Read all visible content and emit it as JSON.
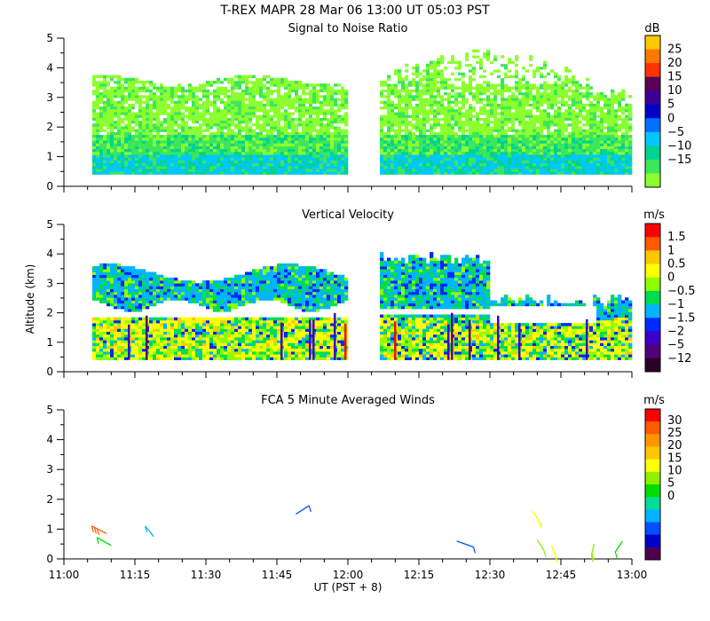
{
  "title": "T-REX   MAPR 28 Mar 06   13:00 UT   05:03   PST",
  "colors": {
    "snr_scale": [
      "#8cff2e",
      "#3ce65a",
      "#00d291",
      "#00c8ff",
      "#0070ff",
      "#0000c8",
      "#3c0096",
      "#5a005a",
      "#ff3200",
      "#ff7800",
      "#ffc800"
    ],
    "vel_scale": [
      "#280028",
      "#500078",
      "#3c00c8",
      "#0028ff",
      "#00b4ff",
      "#00dc50",
      "#8cff00",
      "#ffff00",
      "#ffc800",
      "#ff5a00",
      "#ff0000"
    ],
    "wind_scale": [
      "#500050",
      "#0000c8",
      "#0050ff",
      "#00b4ff",
      "#00dc96",
      "#00dc00",
      "#8cf000",
      "#ffff00",
      "#ffc800",
      "#ff9600",
      "#ff5a00",
      "#ff0000"
    ]
  },
  "chart_data": [
    {
      "type": "heatmap",
      "title": "Signal to Noise Ratio",
      "unit": "dB",
      "colorbar_ticks": [
        "25",
        "20",
        "15",
        "10",
        "5",
        "0",
        "−5",
        "−10",
        "−15"
      ],
      "xlim": [
        0,
        120
      ],
      "ylim": [
        0,
        5
      ],
      "yticks": [
        "0",
        "1",
        "2",
        "3",
        "4",
        "5"
      ],
      "gaps": [
        [
          60,
          66
        ]
      ],
      "data_extent": {
        "x_start": 6,
        "x_end": 120,
        "y_start": 0.4
      }
    },
    {
      "type": "heatmap",
      "title": "Vertical Velocity",
      "unit": "m/s",
      "colorbar_ticks": [
        "1.5",
        "1",
        "0.5",
        "0",
        "−0.5",
        "−1",
        "−1.5",
        "−2",
        "−5",
        "−12"
      ],
      "xlim": [
        0,
        120
      ],
      "ylim": [
        0,
        5
      ],
      "yticks": [
        "0",
        "1",
        "2",
        "3",
        "4",
        "5"
      ],
      "ylabel": "Altitude (km)",
      "gaps": [
        [
          60,
          66
        ]
      ]
    },
    {
      "type": "scatter",
      "title": "FCA 5 Minute Averaged Winds",
      "unit": "m/s",
      "colorbar_ticks": [
        "30",
        "25",
        "20",
        "15",
        "10",
        "5",
        "0"
      ],
      "xlim": [
        0,
        120
      ],
      "ylim": [
        0,
        5
      ],
      "yticks": [
        "0",
        "1",
        "2",
        "3",
        "4",
        "5"
      ],
      "xticks": [
        "11:00",
        "11:15",
        "11:30",
        "11:45",
        "12:00",
        "12:15",
        "12:30",
        "12:45",
        "13:00"
      ],
      "xlabel": "UT  (PST + 8)",
      "barbs": [
        {
          "t": 9,
          "alt": 0.85,
          "speed": 25
        },
        {
          "t": 10,
          "alt": 0.45,
          "speed": 12
        },
        {
          "t": 19,
          "alt": 0.75,
          "speed": 8
        },
        {
          "t": 49,
          "alt": 1.5,
          "speed": 5
        },
        {
          "t": 83,
          "alt": 0.6,
          "speed": 5
        },
        {
          "t": 99,
          "alt": 1.6,
          "speed": 18
        },
        {
          "t": 100,
          "alt": 0.65,
          "speed": 14
        },
        {
          "t": 103,
          "alt": 0.45,
          "speed": 18
        },
        {
          "t": 112,
          "alt": 0.5,
          "speed": 16
        },
        {
          "t": 118,
          "alt": 0.6,
          "speed": 12
        }
      ]
    }
  ]
}
